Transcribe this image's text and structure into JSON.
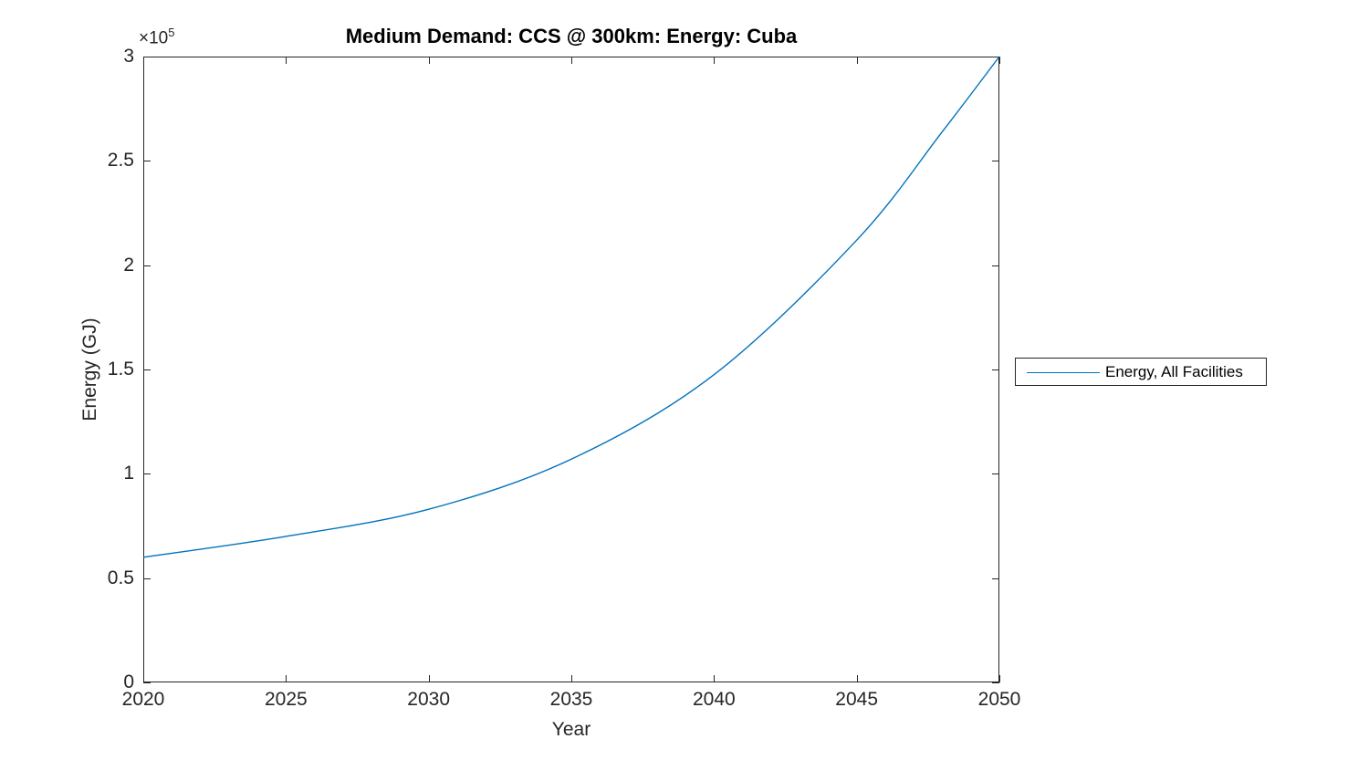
{
  "figure": {
    "title": "Medium Demand: CCS @ 300km: Energy: Cuba",
    "background": "#ffffff"
  },
  "axes": {
    "xlabel": "Year",
    "ylabel": "Energy (GJ)",
    "y_exponent": {
      "base": "×10",
      "power": "5"
    },
    "x_tick_labels": [
      "2020",
      "2025",
      "2030",
      "2035",
      "2040",
      "2045",
      "2050"
    ],
    "y_tick_labels": [
      "0",
      "0.5",
      "1",
      "1.5",
      "2",
      "2.5",
      "3"
    ],
    "axis_color": "#262626",
    "box": true,
    "grid": false
  },
  "legend": {
    "label": "Energy, All Facilities",
    "border_color": "#262626",
    "position": "right-outside"
  },
  "colors": {
    "line": "#0072BD",
    "axis": "#262626",
    "title": "#000000"
  },
  "chart_data": {
    "type": "line",
    "title": "Medium Demand: CCS @ 300km: Energy: Cuba",
    "xlabel": "Year",
    "ylabel": "Energy (GJ)",
    "xlim": [
      2020,
      2050
    ],
    "ylim": [
      0,
      300000
    ],
    "x_ticks": [
      2020,
      2025,
      2030,
      2035,
      2040,
      2045,
      2050
    ],
    "y_ticks": [
      0,
      50000,
      100000,
      150000,
      200000,
      250000,
      300000
    ],
    "grid": false,
    "legend_position": "right-outside",
    "series": [
      {
        "name": "Energy, All Facilities",
        "color": "#0072BD",
        "x": [
          2020,
          2025,
          2030,
          2035,
          2040,
          2045,
          2048,
          2050
        ],
        "y": [
          60000,
          70000,
          83000,
          107000,
          147500,
          212000,
          264000,
          300000
        ]
      }
    ]
  }
}
